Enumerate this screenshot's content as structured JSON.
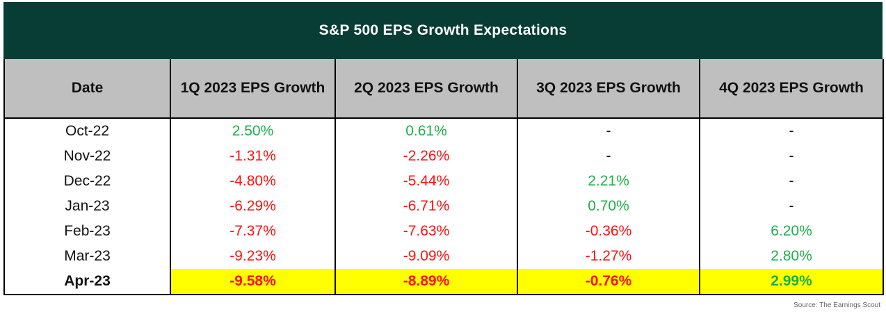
{
  "chart_data": {
    "type": "table",
    "title": "S&P 500 EPS Growth Expectations",
    "columns": [
      "Date",
      "1Q 2023 EPS Growth",
      "2Q 2023 EPS Growth",
      "3Q 2023 EPS Growth",
      "4Q 2023 EPS Growth"
    ],
    "rows": [
      [
        "Oct-22",
        "2.50%",
        "0.61%",
        "-",
        "-"
      ],
      [
        "Nov-22",
        "-1.31%",
        "-2.26%",
        "-",
        "-"
      ],
      [
        "Dec-22",
        "-4.80%",
        "-5.44%",
        "2.21%",
        "-"
      ],
      [
        "Jan-23",
        "-6.29%",
        "-6.71%",
        "0.70%",
        "-"
      ],
      [
        "Feb-23",
        "-7.37%",
        "-7.63%",
        "-0.36%",
        "6.20%"
      ],
      [
        "Mar-23",
        "-9.23%",
        "-9.09%",
        "-1.27%",
        "2.80%"
      ],
      [
        "Apr-23",
        "-9.58%",
        "-8.89%",
        "-0.76%",
        "2.99%"
      ]
    ],
    "highlighted_row": "Apr-23",
    "colors": {
      "header_band": "#073d35",
      "column_header": "#bfbfbf",
      "negative": "#ff1010",
      "positive": "#1fae4a",
      "highlight": "#ffff00"
    }
  },
  "source": "Source: The Earnings Scout"
}
